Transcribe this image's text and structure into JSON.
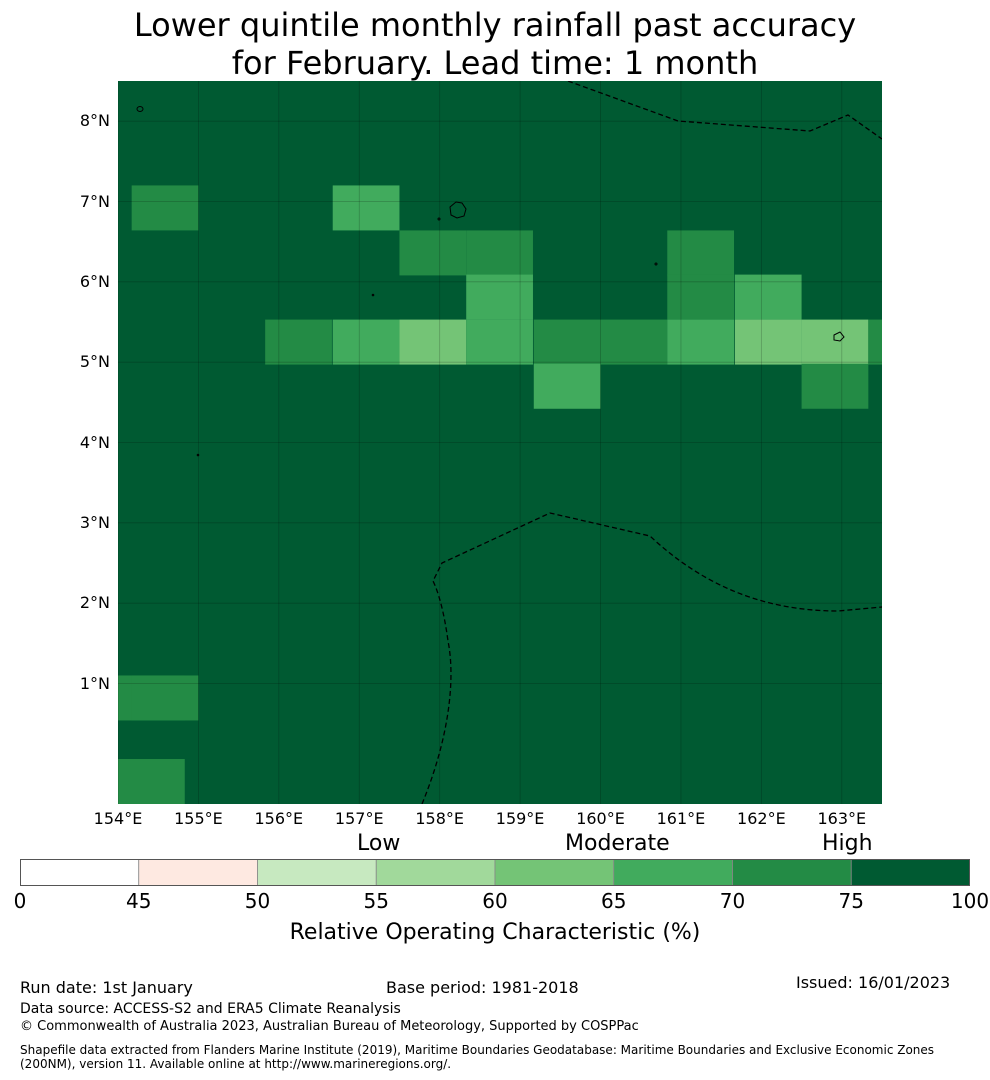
{
  "title_line1": "Lower quintile monthly rainfall past accuracy",
  "title_line2": "for February. Lead time: 1 month",
  "map": {
    "lon_range": [
      154,
      163.5
    ],
    "lat_range": [
      -0.5,
      8.5
    ],
    "cell_size_deg": 0.83,
    "background_value": 80,
    "lat_ticks": [
      "8°N",
      "7°N",
      "6°N",
      "5°N",
      "4°N",
      "3°N",
      "2°N",
      "1°N"
    ],
    "lat_values": [
      8,
      7,
      6,
      5,
      4,
      3,
      2,
      1
    ],
    "lon_ticks": [
      "154°E",
      "155°E",
      "156°E",
      "157°E",
      "158°E",
      "159°E",
      "160°E",
      "161°E",
      "162°E",
      "163°E"
    ],
    "lon_values": [
      154,
      155,
      156,
      157,
      158,
      159,
      160,
      161,
      162,
      163
    ],
    "cells": [
      {
        "lon0": 154.17,
        "lat0": 6.64,
        "value": 72
      },
      {
        "lon0": 156.67,
        "lat0": 6.64,
        "value": 67
      },
      {
        "lon0": 157.5,
        "lat0": 6.08,
        "value": 72
      },
      {
        "lon0": 158.33,
        "lat0": 6.08,
        "value": 72
      },
      {
        "lon0": 160.83,
        "lat0": 6.08,
        "value": 72
      },
      {
        "lon0": 158.33,
        "lat0": 5.53,
        "value": 67
      },
      {
        "lon0": 160.83,
        "lat0": 5.53,
        "value": 72
      },
      {
        "lon0": 161.67,
        "lat0": 5.53,
        "value": 67
      },
      {
        "lon0": 155.83,
        "lat0": 4.97,
        "value": 72
      },
      {
        "lon0": 156.67,
        "lat0": 4.97,
        "value": 67
      },
      {
        "lon0": 157.5,
        "lat0": 4.97,
        "value": 62
      },
      {
        "lon0": 158.33,
        "lat0": 4.97,
        "value": 67
      },
      {
        "lon0": 159.17,
        "lat0": 4.97,
        "value": 72
      },
      {
        "lon0": 160.0,
        "lat0": 4.97,
        "value": 72
      },
      {
        "lon0": 160.83,
        "lat0": 4.97,
        "value": 67
      },
      {
        "lon0": 161.67,
        "lat0": 4.97,
        "value": 62
      },
      {
        "lon0": 162.5,
        "lat0": 4.97,
        "value": 62
      },
      {
        "lon0": 163.33,
        "lat0": 4.97,
        "value": 72
      },
      {
        "lon0": 159.17,
        "lat0": 4.42,
        "value": 67
      },
      {
        "lon0": 162.5,
        "lat0": 4.42,
        "value": 72
      },
      {
        "lon0": 154.0,
        "lat0": 0.54,
        "value": 72
      },
      {
        "lon0": 154.17,
        "lat0": 0.54,
        "value": 72
      },
      {
        "lon0": 154.0,
        "lat0": -0.5,
        "value": 72
      }
    ]
  },
  "colorbar": {
    "category_low": "Low",
    "category_moderate": "Moderate",
    "category_high": "High",
    "ticks": [
      "0",
      "45",
      "50",
      "55",
      "60",
      "65",
      "70",
      "75",
      "100"
    ],
    "bounds": [
      0,
      45,
      50,
      55,
      60,
      65,
      70,
      75,
      100
    ],
    "colors": [
      "#ffffff",
      "#fee9e1",
      "#c7e9c0",
      "#a1d99b",
      "#74c476",
      "#41ab5d",
      "#238b45",
      "#005a32"
    ],
    "label": "Relative Operating Characteristic (%)"
  },
  "footer": {
    "run_date": "Run date: 1st January",
    "base_period": "Base period: 1981-2018",
    "issued": "Issued: 16/01/2023",
    "data_source": "Data source: ACCESS-S2 and ERA5 Climate Reanalysis",
    "copyright": "© Commonwealth of Australia 2023, Australian Bureau of Meteorology, Supported by COSPPac",
    "shapefile": "Shapefile data extracted from Flanders Marine Institute (2019), Maritime Boundaries Geodatabase: Maritime Boundaries and Exclusive Economic Zones (200NM), version 11. Available online at http://www.marineregions.org/."
  }
}
